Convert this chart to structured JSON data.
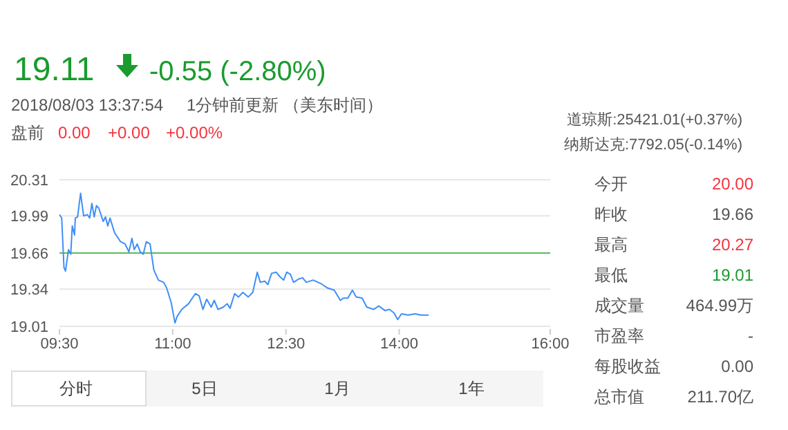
{
  "chart_data": {
    "type": "line",
    "color": "#3f8ef7",
    "x": [
      9.5,
      9.53,
      9.56,
      9.58,
      9.62,
      9.65,
      9.67,
      9.7,
      9.71,
      9.74,
      9.78,
      9.82,
      9.87,
      9.9,
      9.93,
      9.96,
      9.99,
      10.02,
      10.08,
      10.11,
      10.14,
      10.17,
      10.23,
      10.31,
      10.37,
      10.42,
      10.46,
      10.49,
      10.53,
      10.57,
      10.61,
      10.65,
      10.7,
      10.75,
      10.81,
      10.88,
      10.92,
      10.98,
      11.03,
      11.06,
      11.12,
      11.21,
      11.3,
      11.35,
      11.4,
      11.45,
      11.51,
      11.55,
      11.6,
      11.67,
      11.72,
      11.76,
      11.82,
      11.87,
      11.93,
      12.0,
      12.06,
      12.12,
      12.16,
      12.22,
      12.26,
      12.31,
      12.37,
      12.42,
      12.47,
      12.51,
      12.56,
      12.6,
      12.67,
      12.72,
      12.77,
      12.86,
      12.96,
      13.05,
      13.14,
      13.22,
      13.26,
      13.32,
      13.38,
      13.43,
      13.51,
      13.57,
      13.66,
      13.73,
      13.81,
      13.87,
      13.93,
      13.98,
      14.03,
      14.12,
      14.21,
      14.29,
      14.39
    ],
    "values": [
      20.0,
      19.97,
      19.53,
      19.5,
      19.69,
      19.65,
      19.9,
      19.82,
      19.97,
      19.98,
      20.19,
      19.99,
      20.0,
      19.97,
      20.1,
      19.98,
      20.08,
      20.06,
      19.94,
      19.98,
      19.9,
      19.97,
      19.84,
      19.76,
      19.74,
      19.67,
      19.79,
      19.69,
      19.74,
      19.67,
      19.65,
      19.76,
      19.74,
      19.51,
      19.42,
      19.4,
      19.35,
      19.22,
      19.04,
      19.1,
      19.16,
      19.21,
      19.3,
      19.28,
      19.16,
      19.25,
      19.18,
      19.24,
      19.16,
      19.18,
      19.21,
      19.17,
      19.3,
      19.27,
      19.31,
      19.27,
      19.31,
      19.49,
      19.4,
      19.41,
      19.38,
      19.48,
      19.49,
      19.45,
      19.42,
      19.49,
      19.47,
      19.4,
      19.43,
      19.44,
      19.4,
      19.42,
      19.39,
      19.35,
      19.33,
      19.24,
      19.26,
      19.26,
      19.33,
      19.27,
      19.26,
      19.18,
      19.16,
      19.19,
      19.15,
      19.16,
      19.13,
      19.07,
      19.12,
      19.11,
      19.12,
      19.11,
      19.11
    ],
    "xlim": [
      9.5,
      16
    ],
    "xticks": [
      {
        "value": 9.5,
        "label": "09:30"
      },
      {
        "value": 11,
        "label": "11:00"
      },
      {
        "value": 12.5,
        "label": "12:30"
      },
      {
        "value": 14,
        "label": "14:00"
      },
      {
        "value": 16,
        "label": "16:00"
      }
    ],
    "ylim": [
      19.01,
      20.31
    ],
    "yticks": [
      20.31,
      19.99,
      19.66,
      19.34,
      19.01
    ],
    "grid": "y",
    "ref_lines": [
      {
        "axis": "y",
        "value": 19.66,
        "color": "#5cb85c"
      }
    ],
    "annotations": [
      "19.11",
      "-0.55 (-2.80%)",
      "2018/08/03 13:37:54",
      "1分钟前更新 （美东时间）",
      "盘前",
      "0.00",
      "+0.00",
      "+0.00%",
      "道琼斯:25421.01(+0.37%)",
      "纳斯达克:7792.05(-0.14%)",
      "今开",
      "20.00",
      "昨收",
      "19.66",
      "最高",
      "20.27",
      "最低",
      "19.01",
      "成交量",
      "464.99万",
      "市盈率",
      "-",
      "每股收益",
      "0.00",
      "总市值",
      "211.70亿",
      "分时",
      "5日",
      "1月",
      "1年"
    ]
  }
}
